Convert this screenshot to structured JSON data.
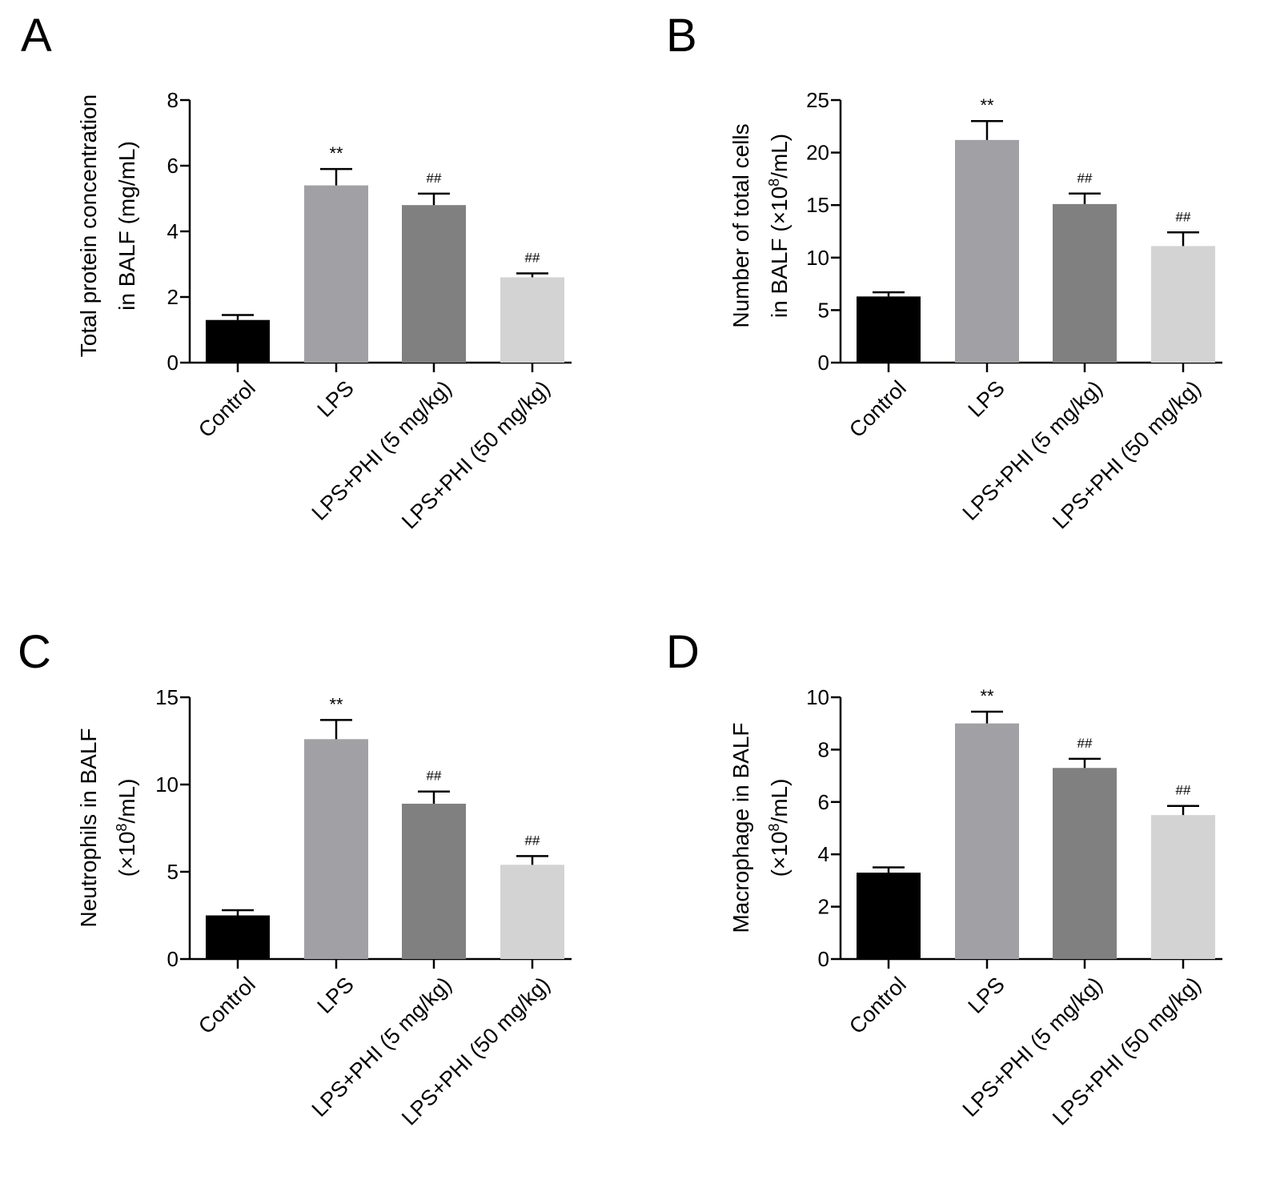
{
  "colors": {
    "axis": "#000000",
    "bar_fills": [
      "#000000",
      "#a0a0a5",
      "#808080",
      "#d3d3d3"
    ],
    "error_bar": "#000000"
  },
  "chart_data": [
    {
      "panel": "A",
      "type": "bar",
      "categories": [
        "Control",
        "LPS",
        "LPS+PHI (5 mg/kg)",
        "LPS+PHI (50 mg/kg)"
      ],
      "values": [
        1.3,
        5.4,
        4.8,
        2.6
      ],
      "errors": [
        0.15,
        0.5,
        0.35,
        0.12
      ],
      "significance": [
        "",
        "**",
        "##",
        "##"
      ],
      "ylabel_lines": [
        "Total protein concentration",
        "in BALF (mg/mL)"
      ],
      "ylim": [
        0,
        8
      ],
      "yticks": [
        0,
        2,
        4,
        6,
        8
      ]
    },
    {
      "panel": "B",
      "type": "bar",
      "categories": [
        "Control",
        "LPS",
        "LPS+PHI (5 mg/kg)",
        "LPS+PHI (50 mg/kg)"
      ],
      "values": [
        6.3,
        21.2,
        15.1,
        11.1
      ],
      "errors": [
        0.4,
        1.8,
        1.0,
        1.3
      ],
      "significance": [
        "",
        "**",
        "##",
        "##"
      ],
      "ylabel_lines": [
        "Number of total cells",
        "in BALF (×10^8/mL)"
      ],
      "ylim": [
        0,
        25
      ],
      "yticks": [
        0,
        5,
        10,
        15,
        20,
        25
      ]
    },
    {
      "panel": "C",
      "type": "bar",
      "categories": [
        "Control",
        "LPS",
        "LPS+PHI (5 mg/kg)",
        "LPS+PHI (50 mg/kg)"
      ],
      "values": [
        2.5,
        12.6,
        8.9,
        5.4
      ],
      "errors": [
        0.3,
        1.1,
        0.7,
        0.5
      ],
      "significance": [
        "",
        "**",
        "##",
        "##"
      ],
      "ylabel_lines": [
        "Neutrophils in BALF",
        "(×10^8/mL)"
      ],
      "ylim": [
        0,
        15
      ],
      "yticks": [
        0,
        5,
        10,
        15
      ]
    },
    {
      "panel": "D",
      "type": "bar",
      "categories": [
        "Control",
        "LPS",
        "LPS+PHI (5 mg/kg)",
        "LPS+PHI (50 mg/kg)"
      ],
      "values": [
        3.3,
        9.0,
        7.3,
        5.5
      ],
      "errors": [
        0.2,
        0.45,
        0.35,
        0.35
      ],
      "significance": [
        "",
        "**",
        "##",
        "##"
      ],
      "ylabel_lines": [
        "Macrophage in BALF",
        "(×10^8/mL)"
      ],
      "ylim": [
        0,
        10
      ],
      "yticks": [
        0,
        2,
        4,
        6,
        8,
        10
      ]
    }
  ]
}
